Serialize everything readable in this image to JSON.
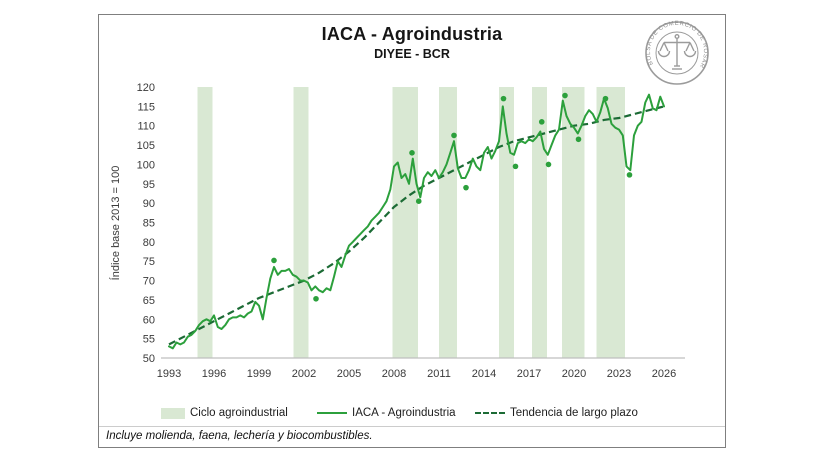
{
  "title": "IACA - Agroindustria",
  "subtitle": "DIYEE - BCR",
  "footnote": "Incluye molienda, faena, lechería y biocombustibles.",
  "logo": {
    "text": "BOLSA DE COMERCIO DE ROSARIO",
    "icon": "scales-icon"
  },
  "colors": {
    "band": "#d9e8d3",
    "line": "#2ca03c",
    "trend": "#1c6b35",
    "axis_text": "#3a3a3a",
    "axis_line": "#bfbfbf",
    "border": "#7f7f7f",
    "logo": "#9b9b9b"
  },
  "chart_data": {
    "type": "line",
    "title": "IACA - Agroindustria",
    "subtitle": "DIYEE - BCR",
    "ylabel": "Índice base 2013 = 100",
    "ylim": [
      50,
      120
    ],
    "ytick_step": 5,
    "xticks": [
      1993,
      1996,
      1999,
      2002,
      2005,
      2008,
      2011,
      2014,
      2017,
      2020,
      2023,
      2026
    ],
    "grid": false,
    "legend_position": "bottom",
    "legend": [
      {
        "label": "Ciclo agroindustrial",
        "type": "band"
      },
      {
        "label": "IACA - Agroindustria",
        "type": "line"
      },
      {
        "label": "Tendencia de largo plazo",
        "type": "dashed"
      }
    ],
    "bands": [
      [
        1994.9,
        1995.9
      ],
      [
        2001.3,
        2002.3
      ],
      [
        2007.9,
        2009.6
      ],
      [
        2011.0,
        2012.2
      ],
      [
        2015.0,
        2016.0
      ],
      [
        2017.2,
        2018.2
      ],
      [
        2019.2,
        2020.7
      ],
      [
        2021.5,
        2023.4
      ]
    ],
    "series": [
      {
        "name": "IACA - Agroindustria",
        "style": "solid",
        "points": [
          [
            1993.0,
            53
          ],
          [
            1993.25,
            52.5
          ],
          [
            1993.5,
            54
          ],
          [
            1993.75,
            53.5
          ],
          [
            1994.0,
            54
          ],
          [
            1994.25,
            55.5
          ],
          [
            1994.5,
            56
          ],
          [
            1994.75,
            57
          ],
          [
            1995.0,
            58.5
          ],
          [
            1995.25,
            59.5
          ],
          [
            1995.5,
            60
          ],
          [
            1995.75,
            59.5
          ],
          [
            1996.0,
            61
          ],
          [
            1996.25,
            58
          ],
          [
            1996.5,
            57.5
          ],
          [
            1996.75,
            58.5
          ],
          [
            1997.0,
            60
          ],
          [
            1997.25,
            60.5
          ],
          [
            1997.5,
            60.5
          ],
          [
            1997.75,
            61
          ],
          [
            1998.0,
            60.5
          ],
          [
            1998.25,
            61.5
          ],
          [
            1998.5,
            62
          ],
          [
            1998.75,
            64.5
          ],
          [
            1999.0,
            63.5
          ],
          [
            1999.25,
            60
          ],
          [
            1999.5,
            65.5
          ],
          [
            1999.75,
            70.5
          ],
          [
            2000.0,
            73.5
          ],
          [
            2000.25,
            71.5
          ],
          [
            2000.5,
            72.5
          ],
          [
            2000.75,
            72.5
          ],
          [
            2001.0,
            73
          ],
          [
            2001.25,
            71.5
          ],
          [
            2001.5,
            71
          ],
          [
            2001.75,
            70
          ],
          [
            2002.0,
            70
          ],
          [
            2002.25,
            69.5
          ],
          [
            2002.5,
            67.5
          ],
          [
            2002.75,
            68.5
          ],
          [
            2003.0,
            67.5
          ],
          [
            2003.25,
            67
          ],
          [
            2003.5,
            68
          ],
          [
            2003.75,
            67.5
          ],
          [
            2004.0,
            71
          ],
          [
            2004.25,
            75
          ],
          [
            2004.5,
            73.5
          ],
          [
            2004.75,
            76.5
          ],
          [
            2005.0,
            79
          ],
          [
            2005.25,
            80
          ],
          [
            2005.5,
            81
          ],
          [
            2005.75,
            82
          ],
          [
            2006.0,
            83
          ],
          [
            2006.25,
            84
          ],
          [
            2006.5,
            85.5
          ],
          [
            2006.75,
            86.5
          ],
          [
            2007.0,
            87.5
          ],
          [
            2007.25,
            89
          ],
          [
            2007.5,
            90.5
          ],
          [
            2007.75,
            93.5
          ],
          [
            2008.0,
            99.5
          ],
          [
            2008.25,
            100.5
          ],
          [
            2008.5,
            96.5
          ],
          [
            2008.75,
            97.5
          ],
          [
            2009.0,
            95
          ],
          [
            2009.25,
            101.5
          ],
          [
            2009.5,
            95
          ],
          [
            2009.75,
            91.5
          ],
          [
            2010.0,
            96.5
          ],
          [
            2010.25,
            98
          ],
          [
            2010.5,
            97
          ],
          [
            2010.75,
            98.5
          ],
          [
            2011.0,
            96.5
          ],
          [
            2011.25,
            98
          ],
          [
            2011.5,
            100
          ],
          [
            2011.75,
            103
          ],
          [
            2012.0,
            106
          ],
          [
            2012.25,
            99
          ],
          [
            2012.5,
            96.5
          ],
          [
            2012.75,
            96.5
          ],
          [
            2013.0,
            98.5
          ],
          [
            2013.25,
            101.5
          ],
          [
            2013.5,
            99.5
          ],
          [
            2013.75,
            98.5
          ],
          [
            2014.0,
            103
          ],
          [
            2014.25,
            104.5
          ],
          [
            2014.5,
            101.5
          ],
          [
            2014.75,
            103.5
          ],
          [
            2015.0,
            106
          ],
          [
            2015.25,
            115
          ],
          [
            2015.5,
            108
          ],
          [
            2015.75,
            103
          ],
          [
            2016.0,
            102.5
          ],
          [
            2016.25,
            105.5
          ],
          [
            2016.5,
            106
          ],
          [
            2016.75,
            105.5
          ],
          [
            2017.0,
            106.5
          ],
          [
            2017.25,
            106
          ],
          [
            2017.5,
            107
          ],
          [
            2017.75,
            108.5
          ],
          [
            2018.0,
            104
          ],
          [
            2018.25,
            102.5
          ],
          [
            2018.5,
            105
          ],
          [
            2018.75,
            107.5
          ],
          [
            2019.0,
            109
          ],
          [
            2019.25,
            116.5
          ],
          [
            2019.5,
            112.5
          ],
          [
            2019.75,
            110.5
          ],
          [
            2020.0,
            109.5
          ],
          [
            2020.25,
            108
          ],
          [
            2020.5,
            110
          ],
          [
            2020.75,
            112.5
          ],
          [
            2021.0,
            114
          ],
          [
            2021.25,
            113
          ],
          [
            2021.5,
            111
          ],
          [
            2021.75,
            113.5
          ],
          [
            2022.0,
            117
          ],
          [
            2022.25,
            114.5
          ],
          [
            2022.5,
            110.5
          ],
          [
            2022.75,
            109.5
          ],
          [
            2023.0,
            109
          ],
          [
            2023.25,
            107.5
          ],
          [
            2023.5,
            99.5
          ],
          [
            2023.75,
            98.5
          ],
          [
            2024.0,
            107.5
          ],
          [
            2024.25,
            110
          ],
          [
            2024.5,
            111
          ],
          [
            2024.75,
            116
          ],
          [
            2025.0,
            118
          ],
          [
            2025.25,
            114.5
          ],
          [
            2025.5,
            114
          ],
          [
            2025.75,
            117.5
          ],
          [
            2026.0,
            115
          ]
        ]
      },
      {
        "name": "Tendencia de largo plazo",
        "style": "dashed",
        "points": [
          [
            1993,
            53.5
          ],
          [
            1994,
            55.5
          ],
          [
            1995,
            57.5
          ],
          [
            1996,
            59.5
          ],
          [
            1997,
            61.5
          ],
          [
            1998,
            63.5
          ],
          [
            1999,
            65.5
          ],
          [
            2000,
            67
          ],
          [
            2001,
            68.5
          ],
          [
            2002,
            70
          ],
          [
            2003,
            72
          ],
          [
            2004,
            74.5
          ],
          [
            2005,
            77.5
          ],
          [
            2006,
            81
          ],
          [
            2007,
            85
          ],
          [
            2008,
            89
          ],
          [
            2009,
            92
          ],
          [
            2010,
            94.5
          ],
          [
            2011,
            96.5
          ],
          [
            2012,
            98.5
          ],
          [
            2013,
            100.5
          ],
          [
            2014,
            102.5
          ],
          [
            2015,
            104.5
          ],
          [
            2016,
            106
          ],
          [
            2017,
            107
          ],
          [
            2018,
            108
          ],
          [
            2019,
            109
          ],
          [
            2020,
            110
          ],
          [
            2021,
            110.5
          ],
          [
            2022,
            111.5
          ],
          [
            2023,
            112
          ],
          [
            2024,
            113
          ],
          [
            2025,
            114
          ],
          [
            2026,
            115
          ]
        ]
      }
    ],
    "markers": [
      [
        2000.0,
        75.2
      ],
      [
        2002.8,
        65.3
      ],
      [
        2009.2,
        103
      ],
      [
        2009.65,
        90.5
      ],
      [
        2012.0,
        107.5
      ],
      [
        2012.8,
        94
      ],
      [
        2015.3,
        117
      ],
      [
        2016.1,
        99.5
      ],
      [
        2017.85,
        111
      ],
      [
        2018.3,
        100
      ],
      [
        2019.4,
        117.8
      ],
      [
        2020.3,
        106.5
      ],
      [
        2022.1,
        117
      ],
      [
        2023.7,
        97.3
      ]
    ]
  }
}
